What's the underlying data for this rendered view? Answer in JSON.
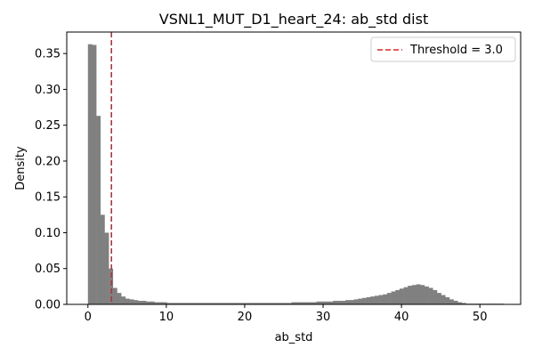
{
  "chart_data": {
    "type": "bar",
    "title": "VSNL1_MUT_D1_heart_24: ab_std dist",
    "xlabel": "ab_std",
    "ylabel": "Density",
    "xlim": [
      -2.7,
      55.2
    ],
    "ylim": [
      0,
      0.38
    ],
    "x_ticks": [
      0,
      10,
      20,
      30,
      40,
      50
    ],
    "y_ticks": [
      0.0,
      0.05,
      0.1,
      0.15,
      0.2,
      0.25,
      0.3,
      0.35
    ],
    "bin_width": 0.53,
    "bin_start": 0.0,
    "bar_color": "#808080",
    "grid": false,
    "legend_position": "top-right",
    "threshold": {
      "label": "Threshold = 3.0",
      "value": 3.0,
      "color": "#d62728"
    },
    "values": [
      0.363,
      0.362,
      0.263,
      0.125,
      0.1,
      0.05,
      0.023,
      0.016,
      0.011,
      0.008,
      0.007,
      0.006,
      0.005,
      0.005,
      0.004,
      0.004,
      0.003,
      0.003,
      0.003,
      0.002,
      0.002,
      0.002,
      0.002,
      0.002,
      0.002,
      0.002,
      0.002,
      0.002,
      0.002,
      0.002,
      0.002,
      0.002,
      0.002,
      0.002,
      0.002,
      0.002,
      0.002,
      0.002,
      0.002,
      0.002,
      0.002,
      0.002,
      0.002,
      0.002,
      0.002,
      0.002,
      0.002,
      0.002,
      0.002,
      0.003,
      0.003,
      0.003,
      0.003,
      0.003,
      0.003,
      0.004,
      0.004,
      0.004,
      0.004,
      0.005,
      0.005,
      0.005,
      0.006,
      0.006,
      0.007,
      0.008,
      0.009,
      0.01,
      0.011,
      0.012,
      0.013,
      0.014,
      0.016,
      0.018,
      0.02,
      0.022,
      0.024,
      0.026,
      0.027,
      0.028,
      0.027,
      0.025,
      0.023,
      0.02,
      0.016,
      0.013,
      0.01,
      0.007,
      0.005,
      0.003,
      0.002,
      0.001,
      0.001,
      0.001,
      0.001,
      0.001,
      0.001,
      0.001,
      0.001,
      0.001
    ]
  }
}
